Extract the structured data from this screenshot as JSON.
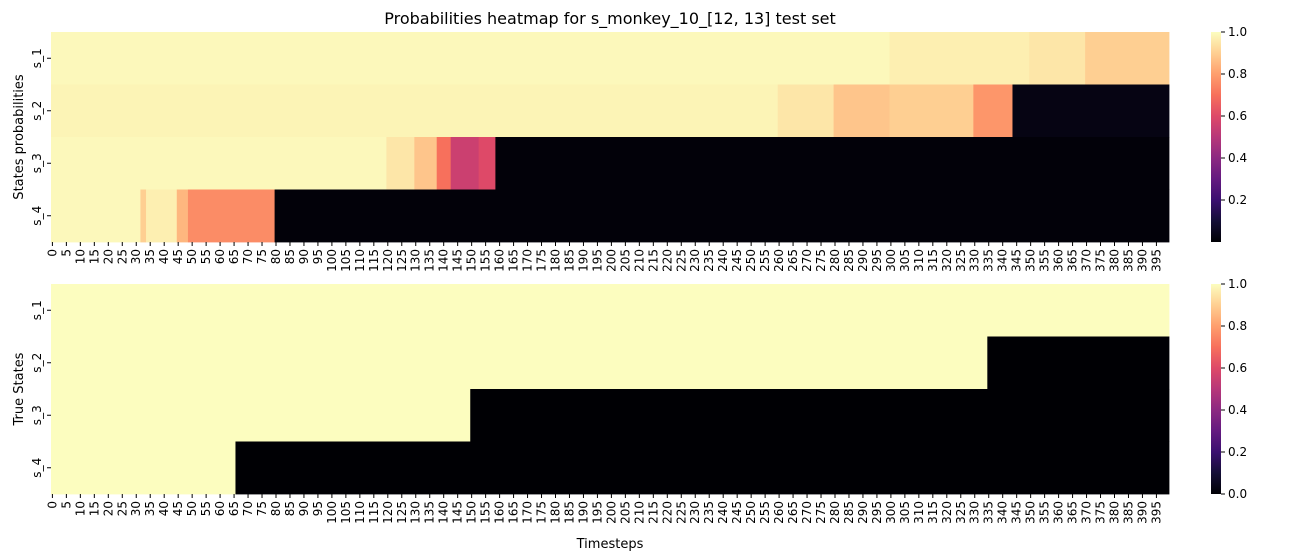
{
  "chart_data": [
    {
      "type": "heatmap",
      "title": "Probabilities heatmap for s_monkey_10_[12, 13] test set",
      "xlabel": "",
      "ylabel": "States probabilities",
      "rows": [
        "s_1",
        "s_2",
        "s_3",
        "s_4"
      ],
      "x_range": [
        0,
        399
      ],
      "x_tick_step": 5,
      "colormap": "magma",
      "colorbar": {
        "min": 0.0,
        "max": 1.0,
        "ticks": [
          "0.2",
          "0.4",
          "0.6",
          "0.8",
          "1.0"
        ]
      },
      "segments": [
        {
          "row": "s_1",
          "start": 0,
          "end": 299,
          "value": 0.99
        },
        {
          "row": "s_1",
          "start": 300,
          "end": 349,
          "value": 0.97
        },
        {
          "row": "s_1",
          "start": 350,
          "end": 369,
          "value": 0.95
        },
        {
          "row": "s_1",
          "start": 370,
          "end": 399,
          "value": 0.9
        },
        {
          "row": "s_2",
          "start": 0,
          "end": 259,
          "value": 0.98
        },
        {
          "row": "s_2",
          "start": 260,
          "end": 279,
          "value": 0.95
        },
        {
          "row": "s_2",
          "start": 280,
          "end": 299,
          "value": 0.88
        },
        {
          "row": "s_2",
          "start": 300,
          "end": 329,
          "value": 0.9
        },
        {
          "row": "s_2",
          "start": 330,
          "end": 343,
          "value": 0.78
        },
        {
          "row": "s_2",
          "start": 344,
          "end": 399,
          "value": 0.03
        },
        {
          "row": "s_3",
          "start": 0,
          "end": 119,
          "value": 0.99
        },
        {
          "row": "s_3",
          "start": 120,
          "end": 129,
          "value": 0.95
        },
        {
          "row": "s_3",
          "start": 130,
          "end": 137,
          "value": 0.88
        },
        {
          "row": "s_3",
          "start": 138,
          "end": 142,
          "value": 0.7
        },
        {
          "row": "s_3",
          "start": 143,
          "end": 152,
          "value": 0.55
        },
        {
          "row": "s_3",
          "start": 153,
          "end": 158,
          "value": 0.6
        },
        {
          "row": "s_3",
          "start": 159,
          "end": 399,
          "value": 0.01
        },
        {
          "row": "s_4",
          "start": 0,
          "end": 31,
          "value": 0.99
        },
        {
          "row": "s_4",
          "start": 32,
          "end": 33,
          "value": 0.9
        },
        {
          "row": "s_4",
          "start": 34,
          "end": 44,
          "value": 0.97
        },
        {
          "row": "s_4",
          "start": 45,
          "end": 48,
          "value": 0.85
        },
        {
          "row": "s_4",
          "start": 49,
          "end": 79,
          "value": 0.76
        },
        {
          "row": "s_4",
          "start": 80,
          "end": 399,
          "value": 0.01
        }
      ]
    },
    {
      "type": "heatmap",
      "title": "",
      "xlabel": "Timesteps",
      "ylabel": "True States",
      "rows": [
        "s_1",
        "s_2",
        "s_3",
        "s_4"
      ],
      "x_range": [
        0,
        399
      ],
      "x_tick_step": 5,
      "colormap": "magma",
      "colorbar": {
        "min": 0.0,
        "max": 1.0,
        "ticks": [
          "0.0",
          "0.2",
          "0.4",
          "0.6",
          "0.8",
          "1.0"
        ]
      },
      "segments": [
        {
          "row": "s_1",
          "start": 0,
          "end": 399,
          "value": 1.0
        },
        {
          "row": "s_2",
          "start": 0,
          "end": 334,
          "value": 1.0
        },
        {
          "row": "s_2",
          "start": 335,
          "end": 399,
          "value": 0.0
        },
        {
          "row": "s_3",
          "start": 0,
          "end": 149,
          "value": 1.0
        },
        {
          "row": "s_3",
          "start": 150,
          "end": 399,
          "value": 0.0
        },
        {
          "row": "s_4",
          "start": 0,
          "end": 65,
          "value": 1.0
        },
        {
          "row": "s_4",
          "start": 66,
          "end": 399,
          "value": 0.0
        }
      ]
    }
  ]
}
